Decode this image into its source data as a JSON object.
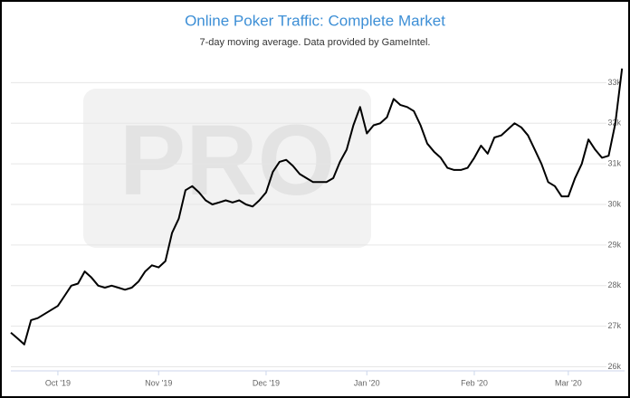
{
  "chart_data": {
    "type": "line",
    "title": "Online Poker Traffic: Complete Market",
    "subtitle": "7-day moving average. Data provided by GameIntel.",
    "watermark": "PRO",
    "categories": [
      null,
      null,
      null,
      null,
      null,
      null,
      null,
      "Oct '19",
      null,
      null,
      null,
      null,
      null,
      null,
      null,
      null,
      null,
      null,
      null,
      null,
      null,
      null,
      "Nov '19",
      null,
      null,
      null,
      null,
      null,
      null,
      null,
      null,
      null,
      null,
      null,
      null,
      null,
      null,
      null,
      "Dec '19",
      null,
      null,
      null,
      null,
      null,
      null,
      null,
      null,
      null,
      null,
      null,
      null,
      null,
      null,
      "Jan '20",
      null,
      null,
      null,
      null,
      null,
      null,
      null,
      null,
      null,
      null,
      null,
      null,
      null,
      null,
      null,
      "Feb '20",
      null,
      null,
      null,
      null,
      null,
      null,
      null,
      null,
      null,
      null,
      null,
      null,
      null,
      "Mar '20",
      null,
      null,
      null,
      null,
      null,
      null,
      null,
      null
    ],
    "series": [
      {
        "name": "Complete Market",
        "color": "#000000",
        "values": [
          26840,
          26700,
          26550,
          27150,
          27200,
          27300,
          27400,
          27500,
          27750,
          28000,
          28050,
          28350,
          28200,
          28000,
          27950,
          28000,
          27950,
          27900,
          27950,
          28100,
          28350,
          28500,
          28450,
          28600,
          29300,
          29650,
          30350,
          30450,
          30300,
          30100,
          30000,
          30050,
          30100,
          30050,
          30100,
          30000,
          29950,
          30100,
          30300,
          30800,
          31050,
          31100,
          30950,
          30750,
          30650,
          30550,
          30550,
          30550,
          30650,
          31050,
          31350,
          31950,
          32400,
          31750,
          31950,
          32000,
          32150,
          32600,
          32450,
          32400,
          32300,
          31950,
          31500,
          31300,
          31150,
          30900,
          30850,
          30850,
          30900,
          31150,
          31450,
          31250,
          31650,
          31700,
          31850,
          32000,
          31900,
          31700,
          31350,
          31000,
          30550,
          30450,
          30200,
          30200,
          30650,
          31000,
          31600,
          31350,
          31150,
          31200,
          32000,
          33350
        ]
      }
    ],
    "ylim": [
      25900,
      33700
    ],
    "yticks": [
      {
        "value": 26000,
        "label": "26k"
      },
      {
        "value": 27000,
        "label": "27k"
      },
      {
        "value": 28000,
        "label": "28k"
      },
      {
        "value": 29000,
        "label": "29k"
      },
      {
        "value": 30000,
        "label": "30k"
      },
      {
        "value": 31000,
        "label": "31k"
      },
      {
        "value": 32000,
        "label": "32k"
      },
      {
        "value": 33000,
        "label": "33k"
      }
    ],
    "grid": true
  }
}
